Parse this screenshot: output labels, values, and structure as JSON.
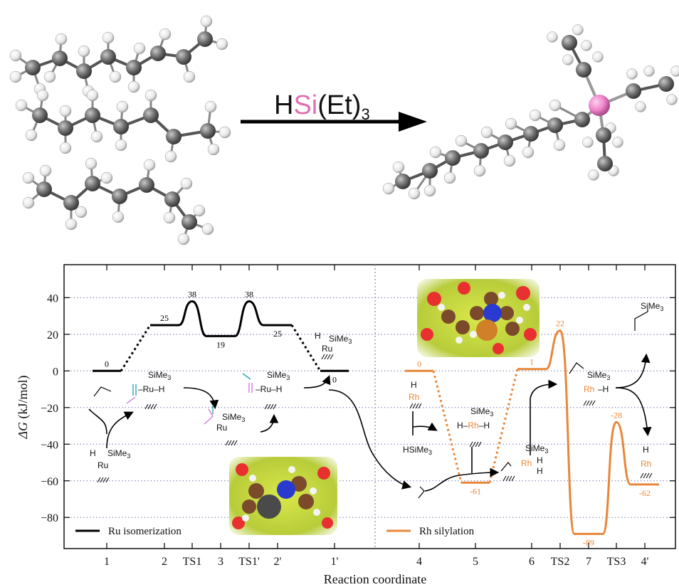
{
  "reaction": {
    "reagent_prefix": "H",
    "reagent_si": "Si",
    "reagent_suffix": "(Et)",
    "reagent_sub": "3",
    "si_color": "#e070b0"
  },
  "colors": {
    "ru": "#000000",
    "rh": "#e8873a",
    "carbon": "#6b6b6b",
    "hydrogen": "#f2f2f2",
    "silicon": "#ee82c8"
  },
  "chart_data": {
    "type": "line",
    "xlabel": "Reaction coordinate",
    "ylabel_italic": "ΔG",
    "ylabel_unit": " (kJ/mol)",
    "ylim": [
      -97,
      58
    ],
    "yticks": [
      40,
      20,
      0,
      -20,
      -40,
      -60,
      -80
    ],
    "grid": "horizontal dotted",
    "x_categories": [
      "1",
      "2",
      "TS1",
      "3",
      "TS1'",
      "2'",
      "1'",
      "4",
      "5",
      "6",
      "TS2",
      "7",
      "TS3",
      "4'"
    ],
    "series": [
      {
        "name": "Ru isomerization",
        "points": [
          {
            "state": "1",
            "value": 0
          },
          {
            "state": "2",
            "value": 25
          },
          {
            "state": "TS1",
            "value": 38
          },
          {
            "state": "3",
            "value": 19
          },
          {
            "state": "TS1'",
            "value": 38
          },
          {
            "state": "2'",
            "value": 25
          },
          {
            "state": "1'",
            "value": 0
          }
        ]
      },
      {
        "name": "Rh silylation",
        "points": [
          {
            "state": "4",
            "value": 0
          },
          {
            "state": "5",
            "value": -61
          },
          {
            "state": "6",
            "value": 1
          },
          {
            "state": "TS2",
            "value": 22
          },
          {
            "state": "7",
            "value": -89
          },
          {
            "state": "TS3",
            "value": -28
          },
          {
            "state": "4'",
            "value": -62
          }
        ]
      }
    ],
    "value_labels": {
      "ru": [
        "0",
        "25",
        "38",
        "19",
        "38",
        "25",
        "0"
      ],
      "rh": [
        "0",
        "-61",
        "1",
        "22",
        "-89",
        "-28",
        "-62"
      ]
    },
    "annotations": {
      "sime3": "SiMe",
      "sub3": "3",
      "h": "H",
      "ru": "Ru",
      "rh": "Rh",
      "hsime3": "HSiMe",
      "h_rh_h": "H–",
      "rh_h": "–H",
      "ru_h": "–Ru–H"
    }
  }
}
